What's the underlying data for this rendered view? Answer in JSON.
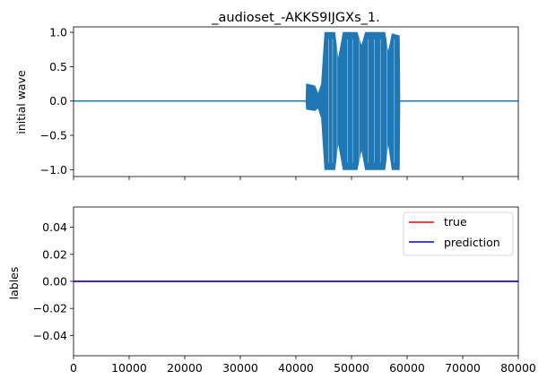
{
  "chart_data": [
    {
      "type": "line",
      "title": "_audioset_-AKKS9IJGXs_1.",
      "ylabel": "initial wave",
      "xlabel": "",
      "xlim": [
        0,
        80000
      ],
      "ylim": [
        -1.1,
        1.08
      ],
      "yticks": [
        "−1.0",
        "−0.5",
        "0.0",
        "0.5",
        "1.0"
      ],
      "ytick_values": [
        -1.0,
        -0.5,
        0.0,
        0.5,
        1.0
      ],
      "xticks": [
        0,
        10000,
        20000,
        30000,
        40000,
        50000,
        60000,
        70000,
        80000
      ],
      "show_xtick_labels": false,
      "series": [
        {
          "color": "#1f77b4",
          "baseline": 0.0,
          "envelope": [
            {
              "x": 0,
              "lo": 0.0,
              "hi": 0.0
            },
            {
              "x": 41800,
              "lo": 0.0,
              "hi": 0.0
            },
            {
              "x": 41900,
              "lo": -0.12,
              "hi": 0.25
            },
            {
              "x": 43400,
              "lo": -0.14,
              "hi": 0.22
            },
            {
              "x": 44000,
              "lo": -0.1,
              "hi": 0.1
            },
            {
              "x": 44600,
              "lo": -0.25,
              "hi": 0.25
            },
            {
              "x": 45200,
              "lo": -1.0,
              "hi": 1.0
            },
            {
              "x": 47000,
              "lo": -1.0,
              "hi": 1.0
            },
            {
              "x": 47600,
              "lo": -0.6,
              "hi": 0.6
            },
            {
              "x": 48500,
              "lo": -1.0,
              "hi": 1.0
            },
            {
              "x": 51000,
              "lo": -1.0,
              "hi": 1.0
            },
            {
              "x": 51800,
              "lo": -0.7,
              "hi": 0.8
            },
            {
              "x": 52500,
              "lo": -1.0,
              "hi": 1.0
            },
            {
              "x": 56000,
              "lo": -1.0,
              "hi": 1.0
            },
            {
              "x": 56600,
              "lo": -0.6,
              "hi": 0.7
            },
            {
              "x": 57300,
              "lo": -1.0,
              "hi": 0.98
            },
            {
              "x": 58600,
              "lo": -1.0,
              "hi": 0.95
            },
            {
              "x": 58700,
              "lo": 0.0,
              "hi": 0.0
            },
            {
              "x": 80000,
              "lo": 0.0,
              "hi": 0.0
            }
          ]
        }
      ]
    },
    {
      "type": "line",
      "title": "",
      "ylabel": "lables",
      "xlabel": "",
      "xlim": [
        0,
        80000
      ],
      "ylim": [
        -0.055,
        0.055
      ],
      "yticks": [
        "−0.04",
        "−0.02",
        "0.00",
        "0.02",
        "0.04"
      ],
      "ytick_values": [
        -0.04,
        -0.02,
        0.0,
        0.02,
        0.04
      ],
      "xticks": [
        0,
        10000,
        20000,
        30000,
        40000,
        50000,
        60000,
        70000,
        80000
      ],
      "xtick_labels": [
        "0",
        "10000",
        "20000",
        "30000",
        "40000",
        "50000",
        "60000",
        "70000",
        "80000"
      ],
      "legend_position": "top-right",
      "series": [
        {
          "name": "true",
          "color": "#ff0000",
          "x": [
            0,
            80000
          ],
          "y": [
            0.0,
            0.0
          ]
        },
        {
          "name": "prediction",
          "color": "#0000ff",
          "x": [
            0,
            80000
          ],
          "y": [
            0.0,
            0.0
          ]
        }
      ]
    }
  ]
}
